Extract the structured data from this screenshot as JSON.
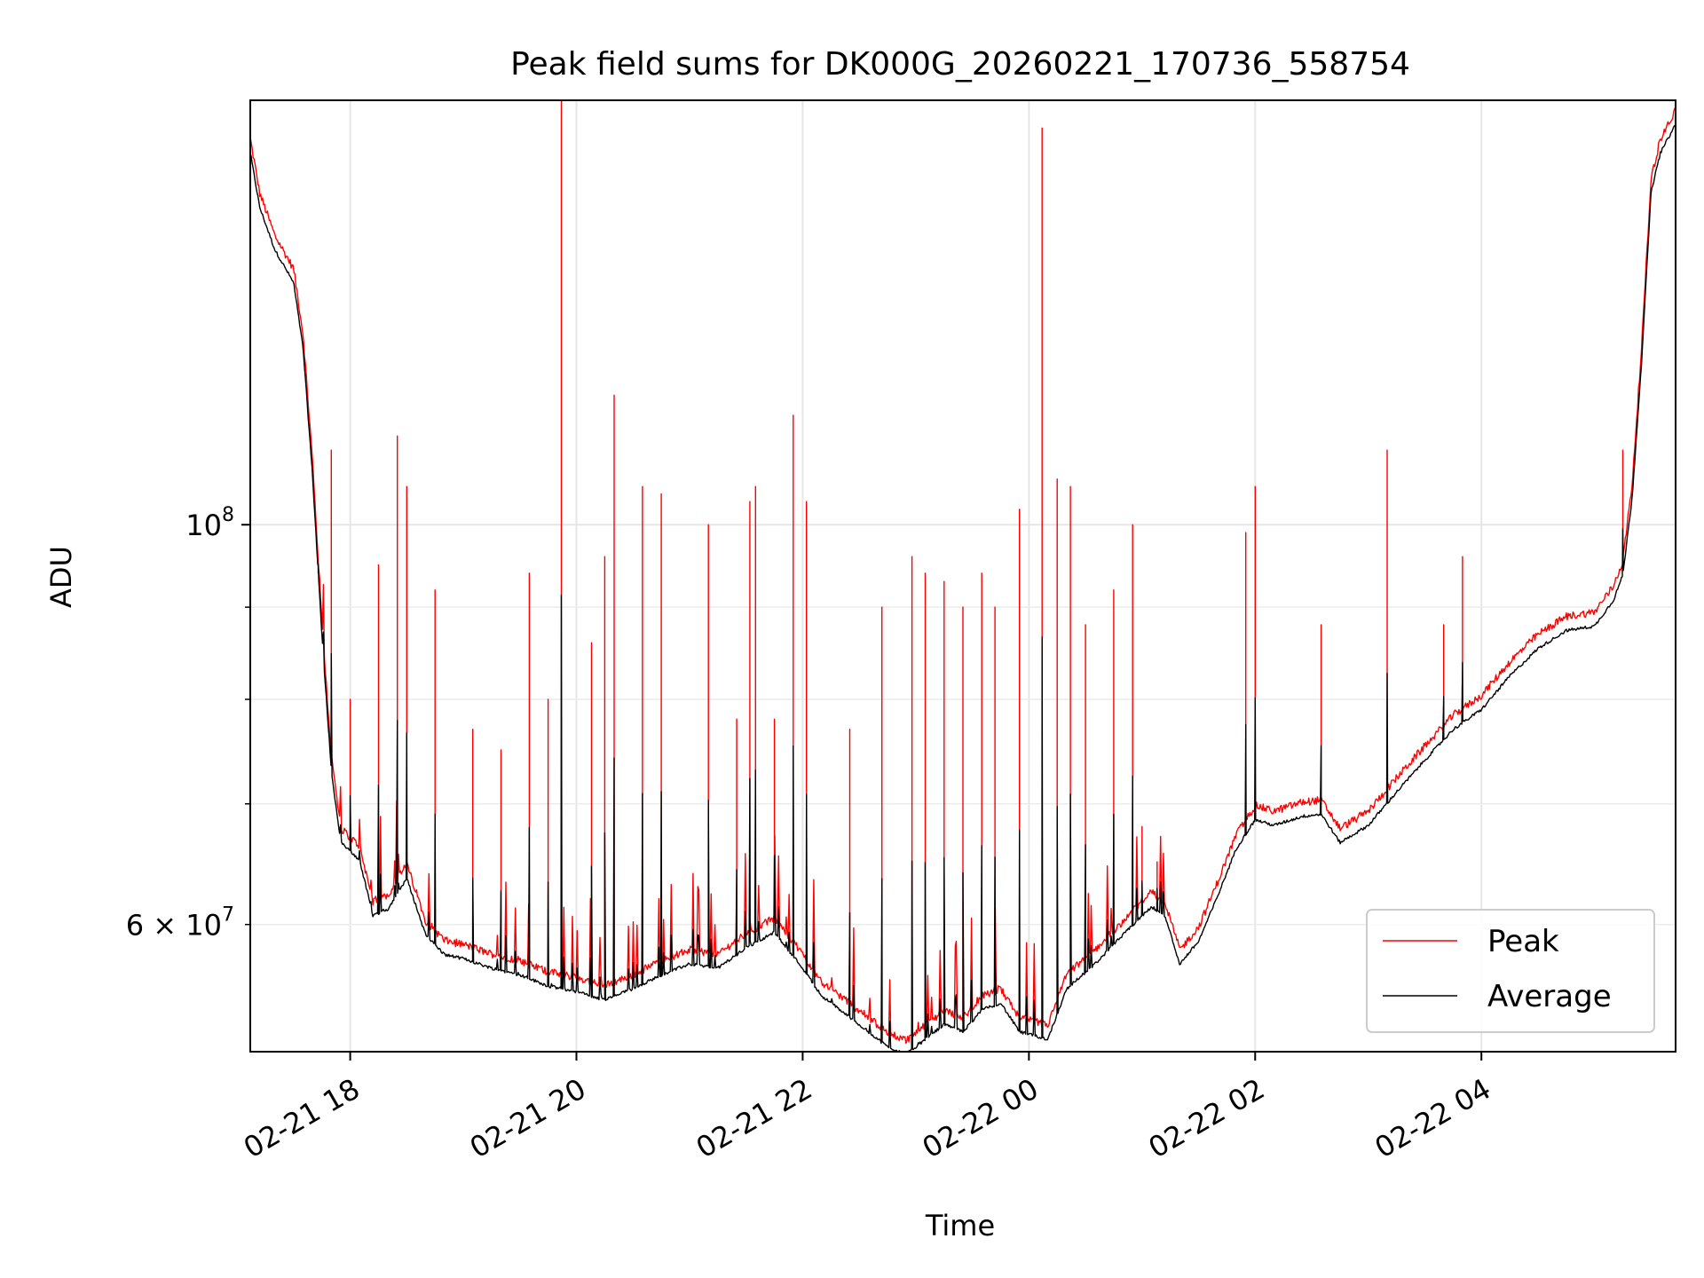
{
  "chart_data": {
    "type": "line",
    "title": "Peak field sums for DK000G_20260221_170736_558754",
    "xlabel": "Time",
    "ylabel": "ADU",
    "x_is_time": true,
    "x_range": [
      "2026-02-21 17:07",
      "2026-02-22 05:43"
    ],
    "x_ticks": [
      {
        "value": "2026-02-21 18:00",
        "label": "02-21 18"
      },
      {
        "value": "2026-02-21 20:00",
        "label": "02-21 20"
      },
      {
        "value": "2026-02-21 22:00",
        "label": "02-21 22"
      },
      {
        "value": "2026-02-22 00:00",
        "label": "02-22 00"
      },
      {
        "value": "2026-02-22 02:00",
        "label": "02-22 02"
      },
      {
        "value": "2026-02-22 04:00",
        "label": "02-22 04"
      }
    ],
    "y_scale": "log",
    "ylim": [
      51000000,
      172000000
    ],
    "y_major_ticks": [
      {
        "value": 100000000,
        "label_base": "10",
        "label_exp": "8"
      }
    ],
    "y_minor_ticks": [
      {
        "value": 60000000,
        "label": "6 × 10",
        "label_exp": "7"
      },
      {
        "value": 70000000
      },
      {
        "value": 80000000
      },
      {
        "value": 90000000
      }
    ],
    "grid": true,
    "legend_position": "lower-right",
    "series": [
      {
        "name": "Peak",
        "color": "#ff0000",
        "baseline": [
          [
            "2026-02-21 17:07",
            163000000
          ],
          [
            "2026-02-21 17:12",
            152000000
          ],
          [
            "2026-02-21 17:20",
            144000000
          ],
          [
            "2026-02-21 17:30",
            138000000
          ],
          [
            "2026-02-21 17:35",
            127000000
          ],
          [
            "2026-02-21 17:40",
            108000000
          ],
          [
            "2026-02-21 17:45",
            88000000
          ],
          [
            "2026-02-21 17:50",
            74000000
          ],
          [
            "2026-02-21 17:55",
            67500000
          ],
          [
            "2026-02-21 18:05",
            66000000
          ],
          [
            "2026-02-21 18:12",
            61500000
          ],
          [
            "2026-02-21 18:20",
            62000000
          ],
          [
            "2026-02-21 18:30",
            64500000
          ],
          [
            "2026-02-21 18:40",
            60000000
          ],
          [
            "2026-02-21 18:50",
            58500000
          ],
          [
            "2026-02-21 19:00",
            58200000
          ],
          [
            "2026-02-21 19:15",
            57500000
          ],
          [
            "2026-02-21 19:30",
            57000000
          ],
          [
            "2026-02-21 19:45",
            56200000
          ],
          [
            "2026-02-21 20:00",
            55800000
          ],
          [
            "2026-02-21 20:15",
            55200000
          ],
          [
            "2026-02-21 20:30",
            56000000
          ],
          [
            "2026-02-21 20:45",
            57000000
          ],
          [
            "2026-02-21 21:00",
            57800000
          ],
          [
            "2026-02-21 21:15",
            57500000
          ],
          [
            "2026-02-21 21:30",
            59000000
          ],
          [
            "2026-02-21 21:45",
            60200000
          ],
          [
            "2026-02-21 22:00",
            57500000
          ],
          [
            "2026-02-21 22:10",
            55500000
          ],
          [
            "2026-02-21 22:20",
            54500000
          ],
          [
            "2026-02-21 22:35",
            53000000
          ],
          [
            "2026-02-21 22:45",
            52000000
          ],
          [
            "2026-02-21 22:55",
            51500000
          ],
          [
            "2026-02-21 23:05",
            52500000
          ],
          [
            "2026-02-21 23:15",
            53500000
          ],
          [
            "2026-02-21 23:25",
            53000000
          ],
          [
            "2026-02-21 23:35",
            54500000
          ],
          [
            "2026-02-21 23:45",
            55000000
          ],
          [
            "2026-02-21 23:55",
            53000000
          ],
          [
            "2026-02-22 00:10",
            52500000
          ],
          [
            "2026-02-22 00:20",
            56000000
          ],
          [
            "2026-02-22 00:35",
            57800000
          ],
          [
            "2026-02-22 00:50",
            60000000
          ],
          [
            "2026-02-22 01:05",
            62200000
          ],
          [
            "2026-02-22 01:12",
            61500000
          ],
          [
            "2026-02-22 01:20",
            57800000
          ],
          [
            "2026-02-22 01:30",
            59500000
          ],
          [
            "2026-02-22 01:40",
            63000000
          ],
          [
            "2026-02-22 01:50",
            67000000
          ],
          [
            "2026-02-22 02:00",
            69500000
          ],
          [
            "2026-02-22 02:10",
            69000000
          ],
          [
            "2026-02-22 02:25",
            69800000
          ],
          [
            "2026-02-22 02:35",
            70000000
          ],
          [
            "2026-02-22 02:45",
            67500000
          ],
          [
            "2026-02-22 03:00",
            69000000
          ],
          [
            "2026-02-22 03:15",
            72000000
          ],
          [
            "2026-02-22 03:30",
            75000000
          ],
          [
            "2026-02-22 03:45",
            78000000
          ],
          [
            "2026-02-22 04:00",
            80000000
          ],
          [
            "2026-02-22 04:15",
            83500000
          ],
          [
            "2026-02-22 04:30",
            86500000
          ],
          [
            "2026-02-22 04:45",
            88500000
          ],
          [
            "2026-02-22 05:00",
            89000000
          ],
          [
            "2026-02-22 05:10",
            92000000
          ],
          [
            "2026-02-22 05:15",
            95000000
          ],
          [
            "2026-02-22 05:20",
            105000000
          ],
          [
            "2026-02-22 05:25",
            125000000
          ],
          [
            "2026-02-22 05:30",
            155000000
          ],
          [
            "2026-02-22 05:35",
            163000000
          ],
          [
            "2026-02-22 05:43",
            169000000
          ]
        ],
        "spikes": [
          [
            "2026-02-21 17:43",
            94000000
          ],
          [
            "2026-02-21 17:50",
            110000000
          ],
          [
            "2026-02-21 18:00",
            80000000
          ],
          [
            "2026-02-21 18:15",
            95000000
          ],
          [
            "2026-02-21 18:25",
            112000000
          ],
          [
            "2026-02-21 18:30",
            105000000
          ],
          [
            "2026-02-21 18:45",
            92000000
          ],
          [
            "2026-02-21 19:05",
            77000000
          ],
          [
            "2026-02-21 19:20",
            75000000
          ],
          [
            "2026-02-21 19:35",
            94000000
          ],
          [
            "2026-02-21 19:45",
            80000000
          ],
          [
            "2026-02-21 19:52",
            174000000
          ],
          [
            "2026-02-21 20:08",
            86000000
          ],
          [
            "2026-02-21 20:15",
            96000000
          ],
          [
            "2026-02-21 20:20",
            118000000
          ],
          [
            "2026-02-21 20:35",
            105000000
          ],
          [
            "2026-02-21 20:45",
            104000000
          ],
          [
            "2026-02-21 21:10",
            100000000
          ],
          [
            "2026-02-21 21:25",
            78000000
          ],
          [
            "2026-02-21 21:32",
            103000000
          ],
          [
            "2026-02-21 21:35",
            105000000
          ],
          [
            "2026-02-21 21:45",
            78000000
          ],
          [
            "2026-02-21 21:55",
            115000000
          ],
          [
            "2026-02-21 22:02",
            103000000
          ],
          [
            "2026-02-21 22:25",
            77000000
          ],
          [
            "2026-02-21 22:42",
            90000000
          ],
          [
            "2026-02-21 22:58",
            96000000
          ],
          [
            "2026-02-21 23:05",
            94000000
          ],
          [
            "2026-02-21 23:15",
            93000000
          ],
          [
            "2026-02-21 23:25",
            90000000
          ],
          [
            "2026-02-21 23:35",
            94000000
          ],
          [
            "2026-02-21 23:42",
            90000000
          ],
          [
            "2026-02-21 23:55",
            102000000
          ],
          [
            "2026-02-22 00:07",
            166000000
          ],
          [
            "2026-02-22 00:15",
            106000000
          ],
          [
            "2026-02-22 00:22",
            105000000
          ],
          [
            "2026-02-22 00:30",
            88000000
          ],
          [
            "2026-02-22 00:45",
            92000000
          ],
          [
            "2026-02-22 00:55",
            100000000
          ],
          [
            "2026-02-22 01:00",
            68000000
          ],
          [
            "2026-02-22 01:08",
            65000000
          ],
          [
            "2026-02-22 01:55",
            99000000
          ],
          [
            "2026-02-22 02:00",
            105000000
          ],
          [
            "2026-02-22 02:35",
            88000000
          ],
          [
            "2026-02-22 03:10",
            110000000
          ],
          [
            "2026-02-22 03:40",
            88000000
          ],
          [
            "2026-02-22 03:50",
            96000000
          ],
          [
            "2026-02-22 05:15",
            110000000
          ]
        ]
      },
      {
        "name": "Average",
        "color": "#000000",
        "baseline_offset_factor": 0.985
      }
    ]
  }
}
